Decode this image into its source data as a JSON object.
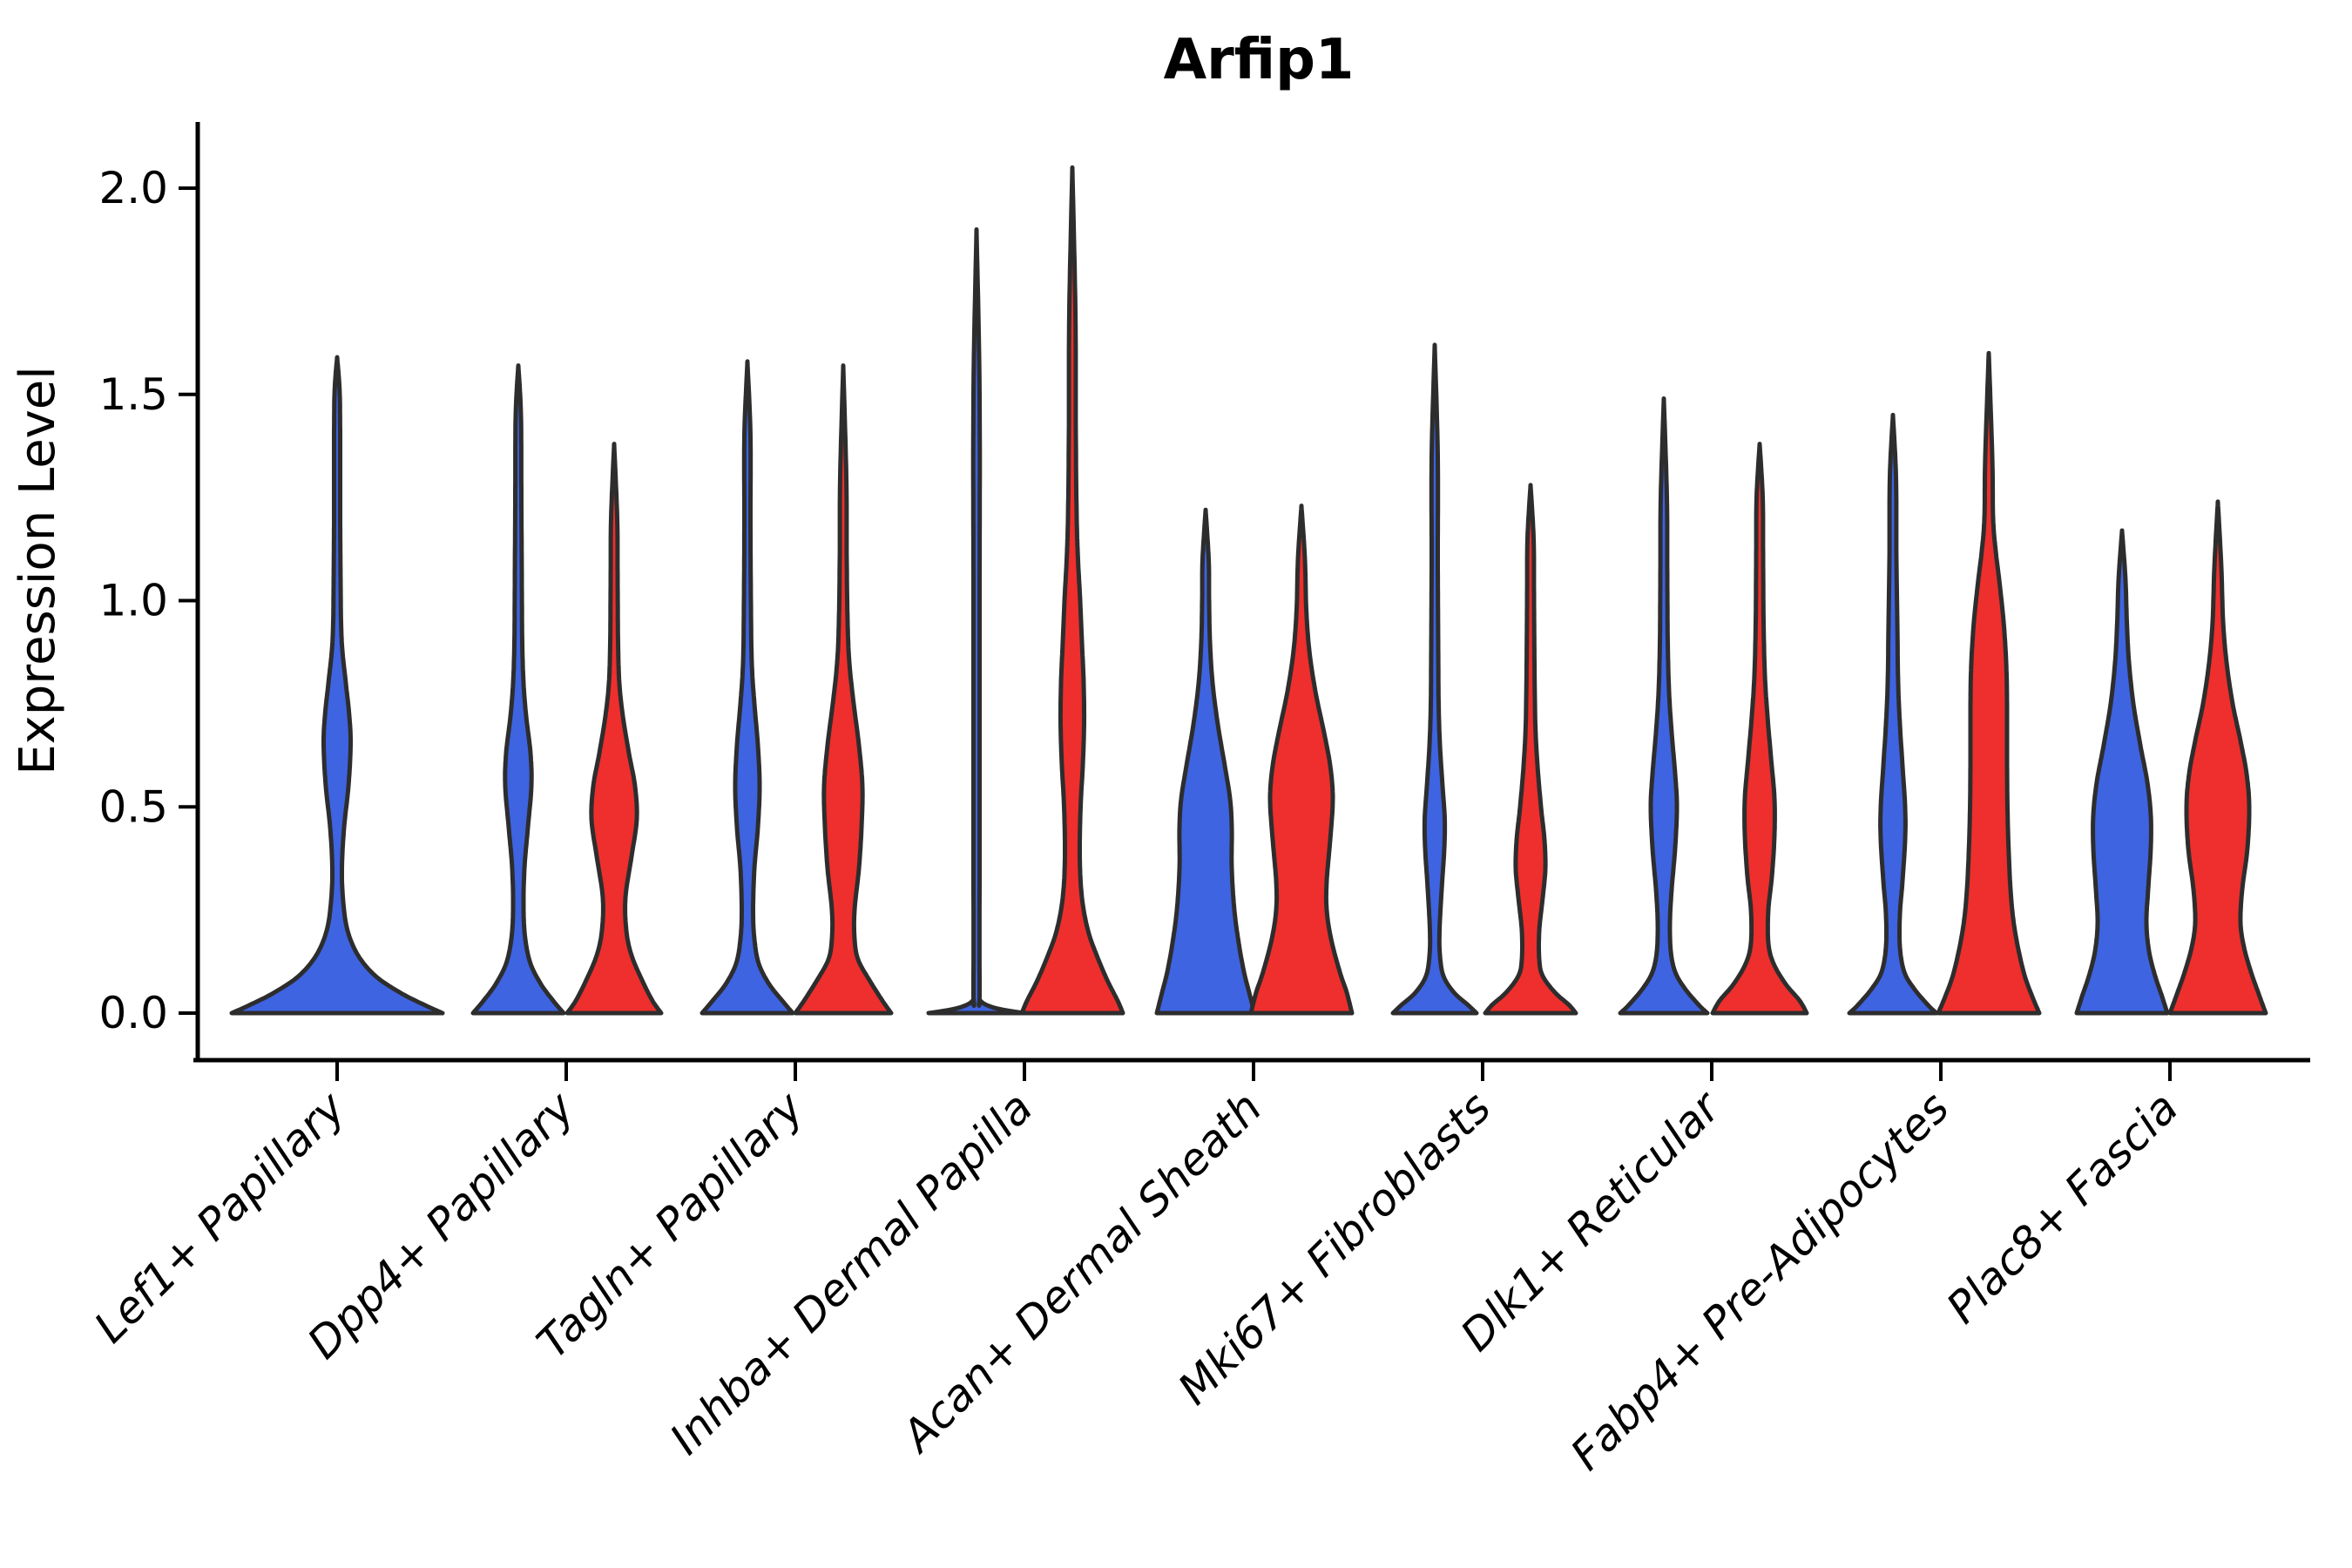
{
  "title": "Arfip1",
  "y_axis": {
    "label": "Expression Level",
    "ticks": [
      "2.0",
      "1.5",
      "1.0",
      "0.5",
      "0.0"
    ],
    "tick_values": [
      2.0,
      1.5,
      1.0,
      0.5,
      0.0
    ]
  },
  "x_axis": {
    "categories": [
      "Lef1+ Papillary",
      "Dpp4+ Papillary",
      "Tagln+ Papillary",
      "Inhba+ Dermal Papilla",
      "Acan+ Dermal Sheath",
      "Mki67+ Fibroblasts",
      "Dlk1+ Reticular",
      "Fabp4+ Pre-Adipocytes",
      "Plac8+ Fascia"
    ],
    "rotation_deg": 45
  },
  "colors": {
    "blue": "#3E64E2",
    "red": "#EE2F2D",
    "outline": "#2D2D2D",
    "background": "#FFFFFF"
  },
  "chart_data": {
    "type": "violin",
    "title": "Arfip1",
    "ylabel": "Expression Level",
    "ylim": [
      0.0,
      2.1
    ],
    "yticks": [
      0.0,
      0.5,
      1.0,
      1.5,
      2.0
    ],
    "grid": false,
    "legend": "none",
    "categories": [
      "Lef1+ Papillary",
      "Dpp4+ Papillary",
      "Tagln+ Papillary",
      "Inhba+ Dermal Papilla",
      "Acan+ Dermal Sheath",
      "Mki67+ Fibroblasts",
      "Dlk1+ Reticular",
      "Fabp4+ Pre-Adipocytes",
      "Plac8+ Fascia"
    ],
    "note": "profile = [expression_value, half_width_px] density outline samples; group blue drawn left of center, red right, except single full-width violins",
    "violins": [
      {
        "category_index": 0,
        "group": "blue",
        "offset": 0,
        "max_expression": 1.59,
        "profile": [
          [
            0,
            121
          ],
          [
            0.02,
            100
          ],
          [
            0.05,
            72
          ],
          [
            0.09,
            44
          ],
          [
            0.14,
            24
          ],
          [
            0.2,
            12
          ],
          [
            0.27,
            7
          ],
          [
            0.35,
            5.5
          ],
          [
            0.45,
            8
          ],
          [
            0.55,
            13
          ],
          [
            0.65,
            15.5
          ],
          [
            0.72,
            14
          ],
          [
            0.8,
            10
          ],
          [
            0.88,
            6
          ],
          [
            0.95,
            4.5
          ],
          [
            1.05,
            4
          ],
          [
            1.2,
            3.5
          ],
          [
            1.35,
            3.5
          ],
          [
            1.5,
            3
          ],
          [
            1.59,
            0
          ]
        ]
      },
      {
        "category_index": 1,
        "group": "blue",
        "offset": -55,
        "max_expression": 1.57,
        "profile": [
          [
            0,
            52
          ],
          [
            0.03,
            40
          ],
          [
            0.07,
            26
          ],
          [
            0.12,
            14
          ],
          [
            0.18,
            8
          ],
          [
            0.25,
            6
          ],
          [
            0.35,
            7
          ],
          [
            0.45,
            11
          ],
          [
            0.55,
            15
          ],
          [
            0.63,
            14
          ],
          [
            0.72,
            9
          ],
          [
            0.8,
            6
          ],
          [
            0.9,
            4.5
          ],
          [
            1.05,
            4
          ],
          [
            1.25,
            3.5
          ],
          [
            1.45,
            3
          ],
          [
            1.57,
            0
          ]
        ]
      },
      {
        "category_index": 1,
        "group": "red",
        "offset": 55,
        "max_expression": 1.38,
        "profile": [
          [
            0,
            54
          ],
          [
            0.03,
            44
          ],
          [
            0.08,
            32
          ],
          [
            0.14,
            20
          ],
          [
            0.2,
            14
          ],
          [
            0.28,
            13
          ],
          [
            0.38,
            20
          ],
          [
            0.47,
            26
          ],
          [
            0.55,
            24
          ],
          [
            0.63,
            17
          ],
          [
            0.72,
            10
          ],
          [
            0.8,
            6
          ],
          [
            0.9,
            4.5
          ],
          [
            1.05,
            4
          ],
          [
            1.2,
            3.5
          ],
          [
            1.38,
            0
          ]
        ]
      },
      {
        "category_index": 2,
        "group": "blue",
        "offset": -55,
        "max_expression": 1.58,
        "profile": [
          [
            0,
            52
          ],
          [
            0.03,
            40
          ],
          [
            0.07,
            25
          ],
          [
            0.12,
            13
          ],
          [
            0.18,
            8
          ],
          [
            0.25,
            6.5
          ],
          [
            0.35,
            8
          ],
          [
            0.45,
            12
          ],
          [
            0.55,
            14
          ],
          [
            0.65,
            12
          ],
          [
            0.75,
            8
          ],
          [
            0.85,
            5
          ],
          [
            1.0,
            4
          ],
          [
            1.2,
            3.5
          ],
          [
            1.4,
            3.5
          ],
          [
            1.58,
            0
          ]
        ]
      },
      {
        "category_index": 2,
        "group": "red",
        "offset": 55,
        "max_expression": 1.57,
        "profile": [
          [
            0,
            55
          ],
          [
            0.03,
            45
          ],
          [
            0.08,
            30
          ],
          [
            0.13,
            17
          ],
          [
            0.18,
            13
          ],
          [
            0.25,
            13
          ],
          [
            0.35,
            18
          ],
          [
            0.45,
            21
          ],
          [
            0.55,
            22
          ],
          [
            0.65,
            18
          ],
          [
            0.75,
            12
          ],
          [
            0.85,
            7
          ],
          [
            0.95,
            5
          ],
          [
            1.1,
            4
          ],
          [
            1.3,
            3.5
          ],
          [
            1.57,
            0
          ]
        ]
      },
      {
        "category_index": 3,
        "group": "blue",
        "offset": -55,
        "max_expression": 1.9,
        "profile": [
          [
            0,
            55
          ],
          [
            0.012,
            22
          ],
          [
            0.03,
            4.5
          ],
          [
            0.06,
            3.5
          ],
          [
            0.5,
            3.5
          ],
          [
            1.0,
            3.5
          ],
          [
            1.5,
            3.5
          ],
          [
            1.9,
            0
          ]
        ]
      },
      {
        "category_index": 3,
        "group": "red",
        "offset": 55,
        "max_expression": 2.05,
        "profile": [
          [
            0,
            58
          ],
          [
            0.03,
            52
          ],
          [
            0.08,
            40
          ],
          [
            0.14,
            28
          ],
          [
            0.2,
            18
          ],
          [
            0.28,
            11
          ],
          [
            0.38,
            8.5
          ],
          [
            0.5,
            9.5
          ],
          [
            0.6,
            12
          ],
          [
            0.7,
            13.5
          ],
          [
            0.8,
            13
          ],
          [
            0.9,
            11
          ],
          [
            1.0,
            9
          ],
          [
            1.1,
            6.5
          ],
          [
            1.2,
            5
          ],
          [
            1.4,
            4
          ],
          [
            1.7,
            3.5
          ],
          [
            2.05,
            0
          ]
        ]
      },
      {
        "category_index": 4,
        "group": "blue",
        "offset": -55,
        "max_expression": 1.22,
        "profile": [
          [
            0,
            56
          ],
          [
            0.05,
            50
          ],
          [
            0.1,
            44
          ],
          [
            0.17,
            38
          ],
          [
            0.25,
            33
          ],
          [
            0.35,
            30
          ],
          [
            0.45,
            30
          ],
          [
            0.52,
            28
          ],
          [
            0.6,
            22
          ],
          [
            0.7,
            14
          ],
          [
            0.8,
            8
          ],
          [
            0.9,
            5
          ],
          [
            1.0,
            4
          ],
          [
            1.1,
            3.5
          ],
          [
            1.22,
            0
          ]
        ]
      },
      {
        "category_index": 4,
        "group": "red",
        "offset": 55,
        "max_expression": 1.23,
        "profile": [
          [
            0,
            58
          ],
          [
            0.05,
            52
          ],
          [
            0.1,
            44
          ],
          [
            0.18,
            34
          ],
          [
            0.25,
            29
          ],
          [
            0.32,
            29
          ],
          [
            0.42,
            33
          ],
          [
            0.52,
            36
          ],
          [
            0.6,
            33
          ],
          [
            0.68,
            26
          ],
          [
            0.78,
            16
          ],
          [
            0.88,
            9
          ],
          [
            0.98,
            5.5
          ],
          [
            1.1,
            4
          ],
          [
            1.23,
            0
          ]
        ]
      },
      {
        "category_index": 5,
        "group": "blue",
        "offset": -55,
        "max_expression": 1.62,
        "profile": [
          [
            0,
            48
          ],
          [
            0.02,
            38
          ],
          [
            0.05,
            22
          ],
          [
            0.09,
            10
          ],
          [
            0.14,
            6
          ],
          [
            0.2,
            5.5
          ],
          [
            0.3,
            8
          ],
          [
            0.4,
            11
          ],
          [
            0.47,
            11.5
          ],
          [
            0.55,
            9
          ],
          [
            0.65,
            6
          ],
          [
            0.75,
            4.5
          ],
          [
            0.9,
            4
          ],
          [
            1.1,
            3.5
          ],
          [
            1.35,
            3.5
          ],
          [
            1.62,
            0
          ]
        ]
      },
      {
        "category_index": 5,
        "group": "red",
        "offset": 55,
        "max_expression": 1.28,
        "profile": [
          [
            0,
            52
          ],
          [
            0.02,
            44
          ],
          [
            0.05,
            28
          ],
          [
            0.09,
            14
          ],
          [
            0.13,
            10
          ],
          [
            0.2,
            10
          ],
          [
            0.28,
            14
          ],
          [
            0.35,
            17
          ],
          [
            0.42,
            16
          ],
          [
            0.5,
            12
          ],
          [
            0.6,
            8
          ],
          [
            0.7,
            5.5
          ],
          [
            0.85,
            4.5
          ],
          [
            1.0,
            4
          ],
          [
            1.15,
            3.5
          ],
          [
            1.28,
            0
          ]
        ]
      },
      {
        "category_index": 6,
        "group": "blue",
        "offset": -55,
        "max_expression": 1.49,
        "profile": [
          [
            0,
            50
          ],
          [
            0.02,
            40
          ],
          [
            0.06,
            24
          ],
          [
            0.1,
            13
          ],
          [
            0.15,
            8
          ],
          [
            0.22,
            7
          ],
          [
            0.3,
            9
          ],
          [
            0.4,
            13
          ],
          [
            0.5,
            15
          ],
          [
            0.58,
            13
          ],
          [
            0.68,
            9
          ],
          [
            0.78,
            6
          ],
          [
            0.9,
            4.5
          ],
          [
            1.05,
            4
          ],
          [
            1.25,
            3.5
          ],
          [
            1.49,
            0
          ]
        ]
      },
      {
        "category_index": 6,
        "group": "red",
        "offset": 55,
        "max_expression": 1.38,
        "profile": [
          [
            0,
            54
          ],
          [
            0.03,
            46
          ],
          [
            0.07,
            30
          ],
          [
            0.12,
            16
          ],
          [
            0.17,
            10
          ],
          [
            0.25,
            10
          ],
          [
            0.33,
            14
          ],
          [
            0.43,
            17
          ],
          [
            0.52,
            17
          ],
          [
            0.62,
            13
          ],
          [
            0.72,
            9
          ],
          [
            0.82,
            6
          ],
          [
            0.95,
            4.5
          ],
          [
            1.1,
            4
          ],
          [
            1.25,
            3.5
          ],
          [
            1.38,
            0
          ]
        ]
      },
      {
        "category_index": 7,
        "group": "blue",
        "offset": -55,
        "max_expression": 1.45,
        "profile": [
          [
            0,
            50
          ],
          [
            0.02,
            40
          ],
          [
            0.06,
            24
          ],
          [
            0.1,
            13
          ],
          [
            0.16,
            8
          ],
          [
            0.24,
            8
          ],
          [
            0.32,
            11
          ],
          [
            0.42,
            14
          ],
          [
            0.5,
            14
          ],
          [
            0.6,
            11
          ],
          [
            0.7,
            8
          ],
          [
            0.8,
            6
          ],
          [
            0.95,
            5
          ],
          [
            1.1,
            4
          ],
          [
            1.3,
            3.5
          ],
          [
            1.45,
            0
          ]
        ]
      },
      {
        "category_index": 7,
        "group": "red",
        "offset": 55,
        "max_expression": 1.6,
        "profile": [
          [
            0,
            58
          ],
          [
            0.04,
            50
          ],
          [
            0.1,
            40
          ],
          [
            0.2,
            30
          ],
          [
            0.3,
            25
          ],
          [
            0.45,
            22
          ],
          [
            0.6,
            21
          ],
          [
            0.75,
            21
          ],
          [
            0.85,
            20
          ],
          [
            0.95,
            17
          ],
          [
            1.05,
            12
          ],
          [
            1.12,
            8
          ],
          [
            1.2,
            5
          ],
          [
            1.35,
            4
          ],
          [
            1.6,
            0
          ]
        ]
      },
      {
        "category_index": 8,
        "group": "blue",
        "offset": -55,
        "max_expression": 1.17,
        "profile": [
          [
            0,
            52
          ],
          [
            0.04,
            46
          ],
          [
            0.09,
            38
          ],
          [
            0.15,
            31
          ],
          [
            0.22,
            28
          ],
          [
            0.3,
            30
          ],
          [
            0.4,
            33
          ],
          [
            0.48,
            33
          ],
          [
            0.56,
            29
          ],
          [
            0.65,
            21
          ],
          [
            0.75,
            13
          ],
          [
            0.85,
            8
          ],
          [
            0.95,
            5.5
          ],
          [
            1.05,
            4
          ],
          [
            1.17,
            0
          ]
        ]
      },
      {
        "category_index": 8,
        "group": "red",
        "offset": 55,
        "max_expression": 1.24,
        "profile": [
          [
            0,
            55
          ],
          [
            0.04,
            48
          ],
          [
            0.1,
            38
          ],
          [
            0.16,
            30
          ],
          [
            0.22,
            26
          ],
          [
            0.3,
            28
          ],
          [
            0.4,
            34
          ],
          [
            0.5,
            36
          ],
          [
            0.58,
            33
          ],
          [
            0.66,
            26
          ],
          [
            0.75,
            17
          ],
          [
            0.85,
            10
          ],
          [
            0.95,
            6
          ],
          [
            1.08,
            4
          ],
          [
            1.24,
            0
          ]
        ]
      }
    ]
  }
}
